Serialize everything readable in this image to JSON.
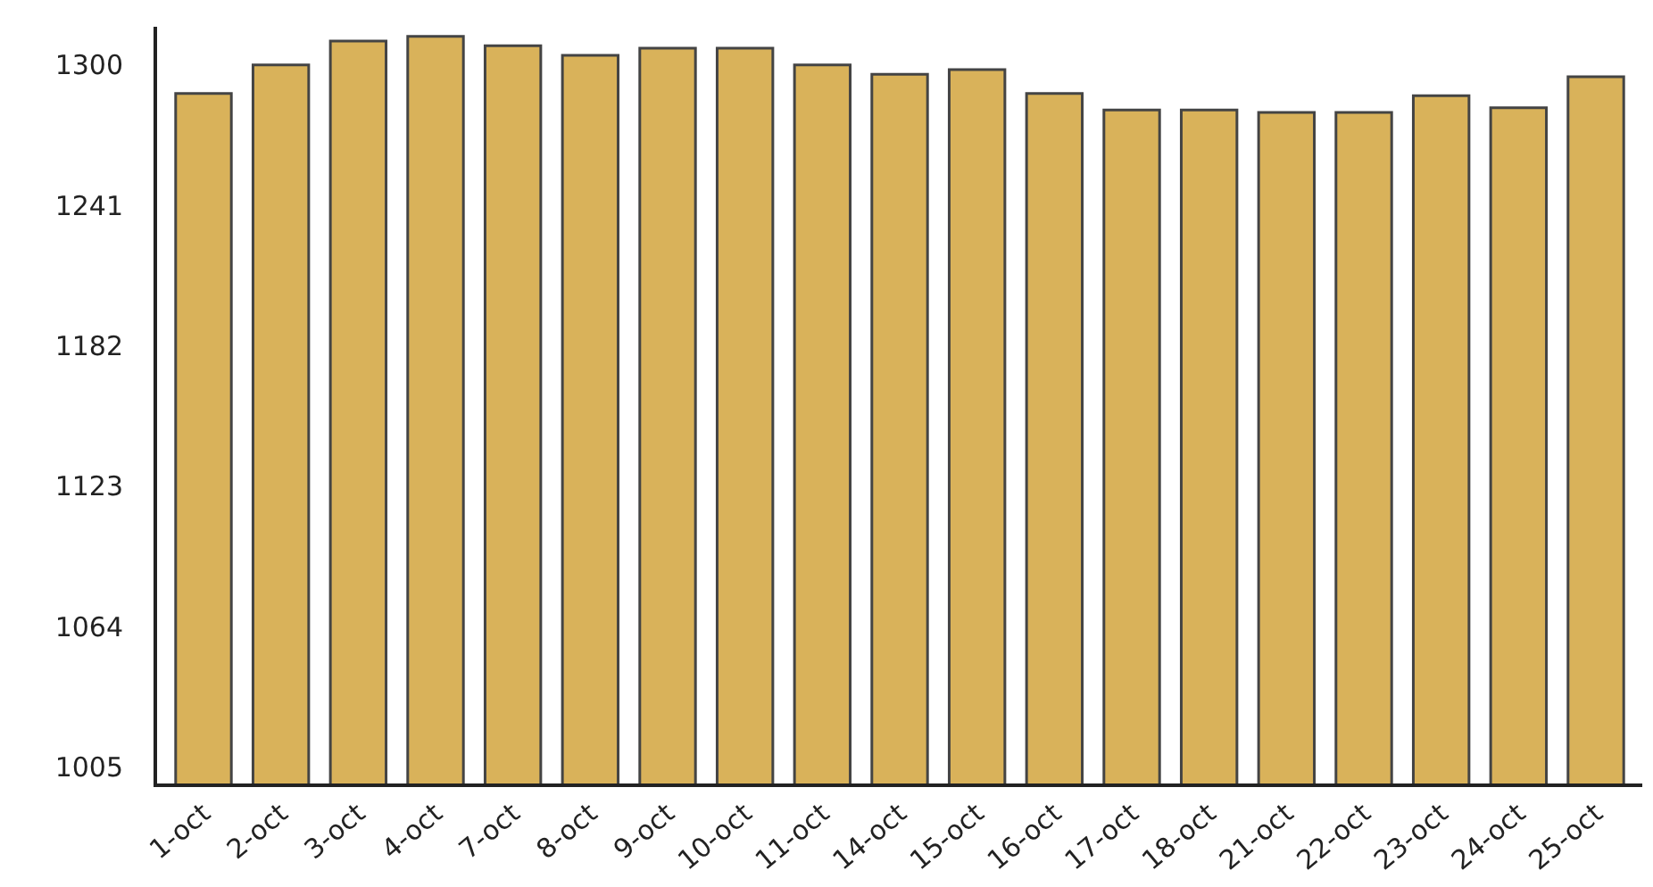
{
  "chart_data": {
    "type": "bar",
    "categories": [
      "1-oct",
      "2-oct",
      "3-oct",
      "4-oct",
      "7-oct",
      "8-oct",
      "9-oct",
      "10-oct",
      "11-oct",
      "14-oct",
      "15-oct",
      "16-oct",
      "17-oct",
      "18-oct",
      "21-oct",
      "22-oct",
      "23-oct",
      "24-oct",
      "25-oct"
    ],
    "values": [
      1288,
      1300,
      1310,
      1312,
      1308,
      1304,
      1307,
      1307,
      1300,
      1296,
      1298,
      1288,
      1281,
      1281,
      1280,
      1280,
      1287,
      1282,
      1295
    ],
    "color": "#d9b25a",
    "ylim": [
      998,
      1316
    ],
    "yticks": [
      1005,
      1064,
      1123,
      1182,
      1241,
      1300
    ]
  }
}
